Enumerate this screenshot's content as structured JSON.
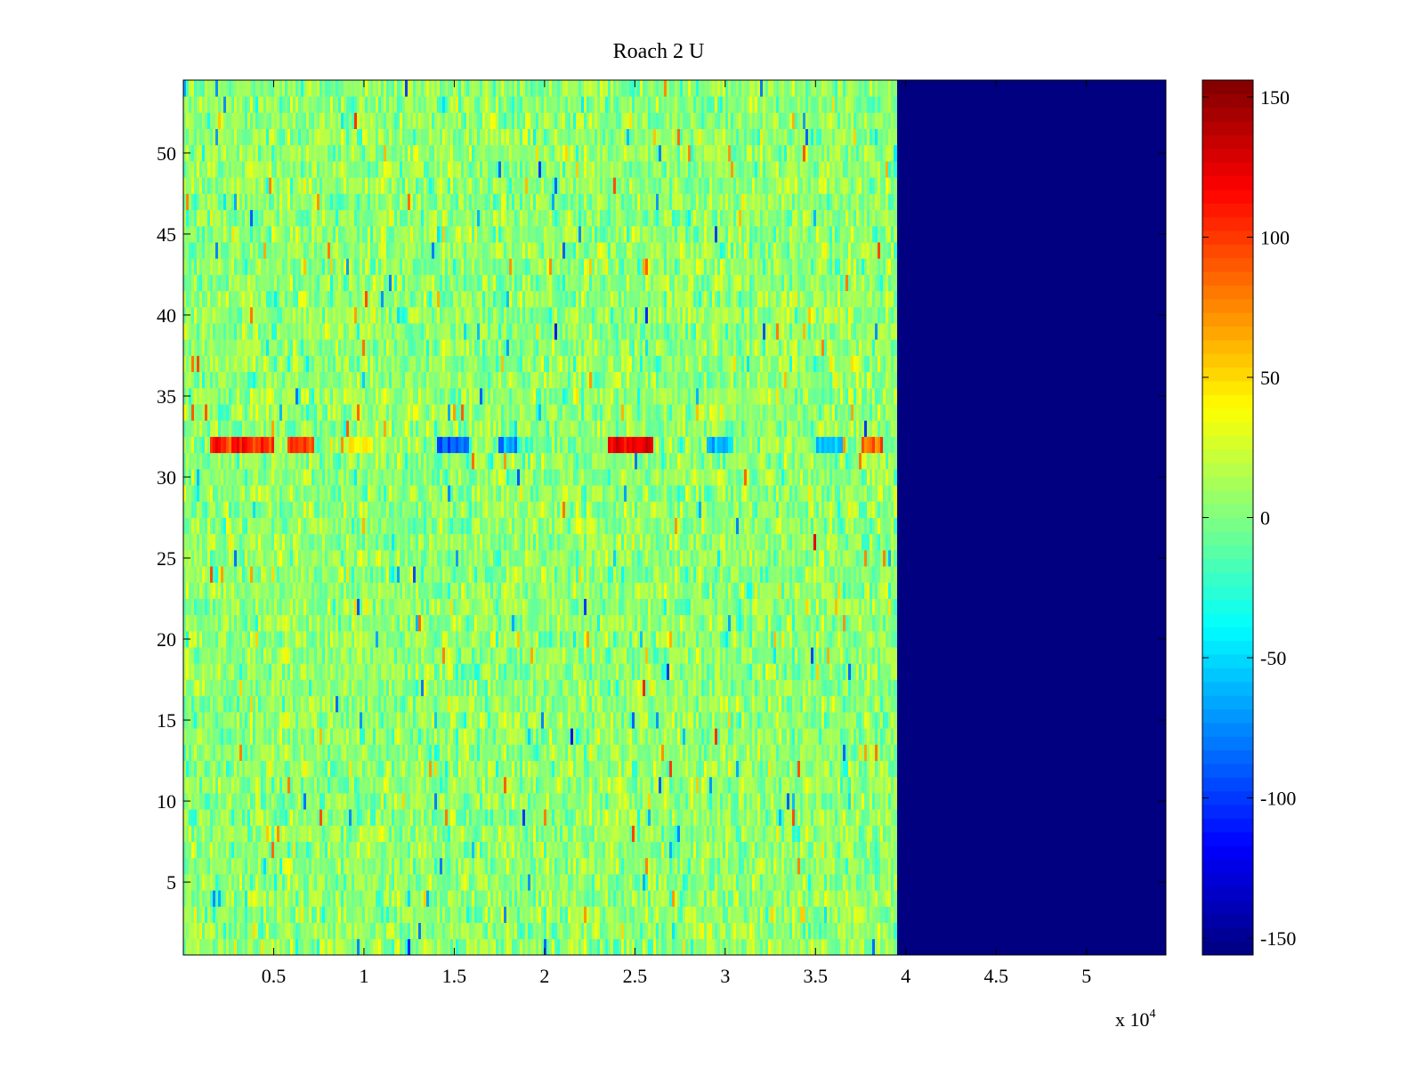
{
  "chart_data": {
    "type": "heatmap",
    "title": "Roach 2 U",
    "xlabel": "",
    "ylabel": "",
    "x_exponent_label": {
      "base": "x 10",
      "exponent": "4"
    },
    "xlim": [
      0,
      54400
    ],
    "ylim": [
      0.5,
      54.5
    ],
    "xticks": [
      0.5,
      1,
      1.5,
      2,
      2.5,
      3,
      3.5,
      4,
      4.5,
      5
    ],
    "xtick_labels": [
      "0.5",
      "1",
      "1.5",
      "2",
      "2.5",
      "3",
      "3.5",
      "4",
      "4.5",
      "5"
    ],
    "yticks": [
      5,
      10,
      15,
      20,
      25,
      30,
      35,
      40,
      45,
      50
    ],
    "ytick_labels": [
      "5",
      "10",
      "15",
      "20",
      "25",
      "30",
      "35",
      "40",
      "45",
      "50"
    ],
    "rows": 54,
    "x_data_end": 39500,
    "colormap": "jet",
    "clim": [
      -156,
      156
    ],
    "background_value": -156,
    "noise_center": 5,
    "noise_spread": 22,
    "highlight_row": {
      "row": 32,
      "segments": [
        {
          "x0": 1500,
          "x1": 5000,
          "value": 105
        },
        {
          "x0": 5800,
          "x1": 7200,
          "value": 95
        },
        {
          "x0": 9000,
          "x1": 10500,
          "value": 45
        },
        {
          "x0": 14000,
          "x1": 15800,
          "value": -85
        },
        {
          "x0": 17500,
          "x1": 18500,
          "value": -70
        },
        {
          "x0": 23500,
          "x1": 26000,
          "value": 120
        },
        {
          "x0": 29000,
          "x1": 30500,
          "value": -55
        },
        {
          "x0": 35000,
          "x1": 36500,
          "value": -60
        },
        {
          "x0": 37500,
          "x1": 38800,
          "value": 80
        }
      ]
    },
    "colorbar": {
      "ticks": [
        150,
        100,
        50,
        0,
        -50,
        -100,
        -150
      ],
      "tick_labels": [
        "150",
        "100",
        "50",
        "0",
        "-50",
        "-100",
        "-150"
      ]
    },
    "grid": false,
    "legend": "none"
  }
}
